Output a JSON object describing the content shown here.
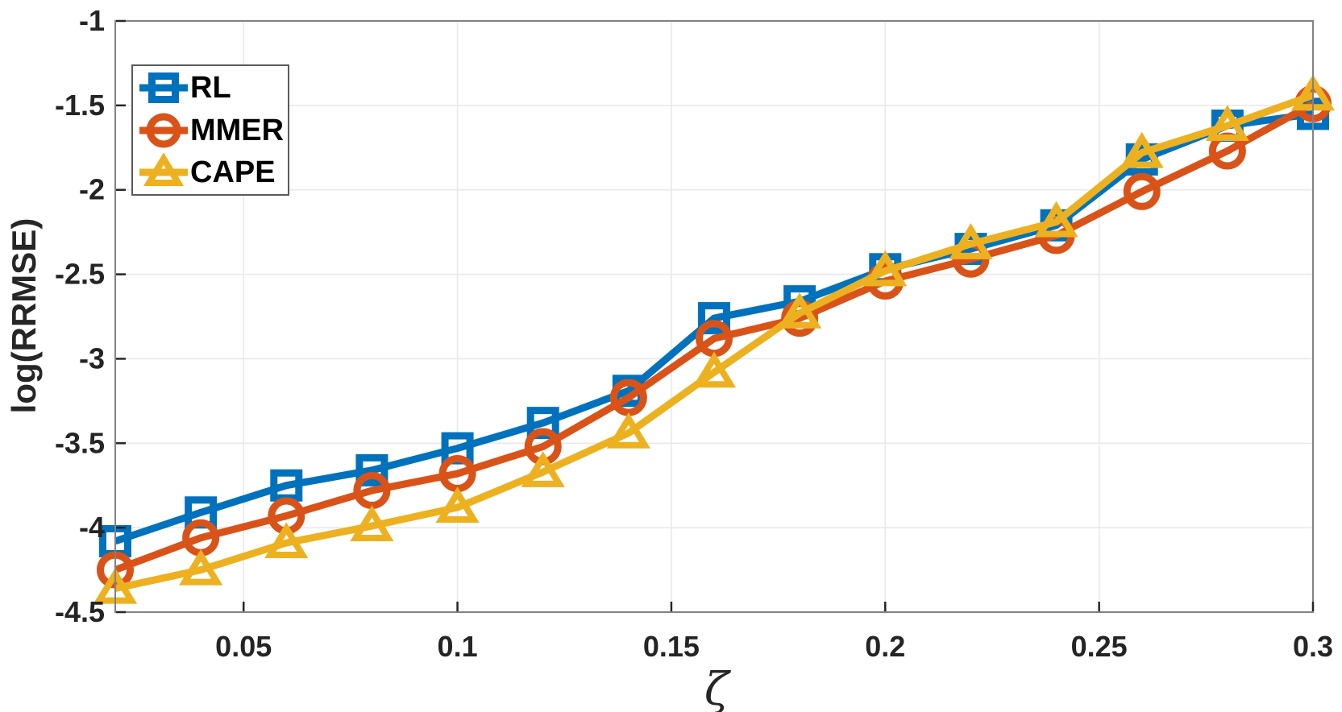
{
  "chart_data": {
    "type": "line",
    "title": "",
    "xlabel": "ζ",
    "ylabel": "log(RRMSE)",
    "xlim": [
      0.02,
      0.3
    ],
    "ylim": [
      -4.5,
      -1
    ],
    "grid": true,
    "legend_position": "top-left",
    "x_ticks": [
      0.05,
      0.1,
      0.15,
      0.2,
      0.25,
      0.3
    ],
    "x_tick_labels": [
      "0.05",
      "0.1",
      "0.15",
      "0.2",
      "0.25",
      "0.3"
    ],
    "y_ticks": [
      -4.5,
      -4,
      -3.5,
      -3,
      -2.5,
      -2,
      -1.5,
      -1
    ],
    "y_tick_labels": [
      "-4.5",
      "-4",
      "-3.5",
      "-3",
      "-2.5",
      "-2",
      "-1.5",
      "-1"
    ],
    "x": [
      0.02,
      0.04,
      0.06,
      0.08,
      0.1,
      0.12,
      0.14,
      0.16,
      0.18,
      0.2,
      0.22,
      0.24,
      0.26,
      0.28,
      0.3
    ],
    "series": [
      {
        "name": "RL",
        "color": "#0072BD",
        "marker": "square",
        "values": [
          -4.08,
          -3.91,
          -3.75,
          -3.66,
          -3.53,
          -3.38,
          -3.19,
          -2.76,
          -2.66,
          -2.47,
          -2.35,
          -2.21,
          -1.82,
          -1.62,
          -1.55
        ]
      },
      {
        "name": "MMER",
        "color": "#D95319",
        "marker": "circle",
        "values": [
          -4.25,
          -4.06,
          -3.93,
          -3.78,
          -3.68,
          -3.52,
          -3.23,
          -2.88,
          -2.76,
          -2.54,
          -2.41,
          -2.27,
          -2.01,
          -1.77,
          -1.49
        ]
      },
      {
        "name": "CAPE",
        "color": "#EDB120",
        "marker": "triangle",
        "values": [
          -4.36,
          -4.25,
          -4.09,
          -3.99,
          -3.88,
          -3.67,
          -3.44,
          -3.08,
          -2.73,
          -2.48,
          -2.32,
          -2.19,
          -1.78,
          -1.62,
          -1.44
        ]
      }
    ],
    "axis_color": "#828282",
    "grid_color": "#e9e9e9",
    "tick_color": "#262626"
  }
}
